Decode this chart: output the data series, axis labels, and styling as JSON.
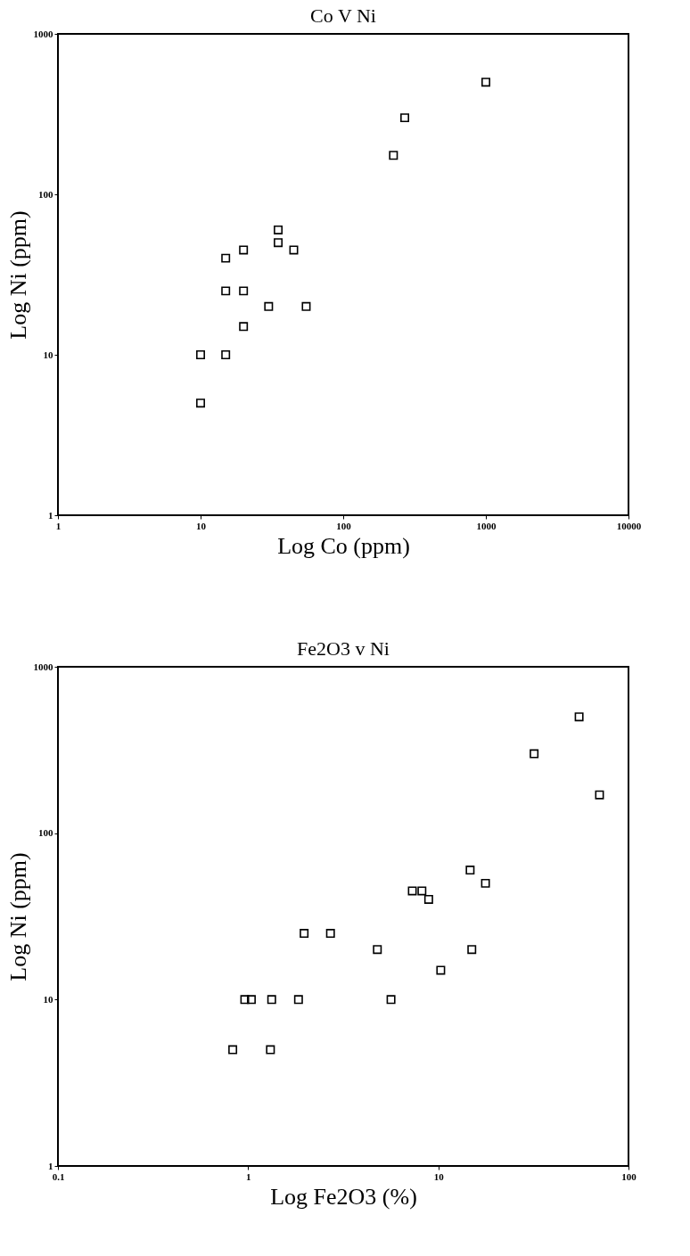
{
  "chart_data": [
    {
      "type": "scatter",
      "title": "Co V Ni",
      "xlabel": "Log Co (ppm)",
      "ylabel": "Log Ni (ppm)",
      "log": "xy",
      "marker": "square",
      "grid": false,
      "xlim": [
        1,
        10000
      ],
      "xticks": [
        1,
        10,
        100,
        1000,
        10000
      ],
      "ylim": [
        1,
        1000
      ],
      "yticks": [
        1,
        10,
        100,
        1000
      ],
      "series": [
        {
          "color": "#000000",
          "x": [
            10,
            10,
            15,
            15,
            15,
            20,
            20,
            20,
            30,
            35,
            35,
            45,
            55,
            225,
            270,
            1000
          ],
          "values": [
            10,
            5,
            40,
            25,
            10,
            45,
            25,
            15,
            20,
            60,
            50,
            45,
            20,
            175,
            300,
            500
          ]
        }
      ]
    },
    {
      "type": "scatter",
      "title": "Fe2O3 v Ni",
      "xlabel": "Log Fe2O3 (%)",
      "ylabel": "Log Ni (ppm)",
      "log": "xy",
      "marker": "square",
      "grid": false,
      "xlim": [
        0.1,
        100
      ],
      "xticks": [
        0.1,
        1,
        10,
        100
      ],
      "ylim": [
        1,
        1000
      ],
      "yticks": [
        1,
        10,
        100,
        1000
      ],
      "series": [
        {
          "color": "#000000",
          "x": [
            0.83,
            0.96,
            1.04,
            1.33,
            1.31,
            1.84,
            1.97,
            2.71,
            4.78,
            5.64,
            7.3,
            8.2,
            8.9,
            10.3,
            14.7,
            15,
            17.7,
            31.9,
            55,
            70.4
          ],
          "values": [
            5,
            10,
            10,
            10,
            5,
            10,
            25,
            25,
            20,
            10,
            45,
            45,
            40,
            15,
            60,
            20,
            50,
            300,
            500,
            170
          ]
        }
      ]
    }
  ]
}
